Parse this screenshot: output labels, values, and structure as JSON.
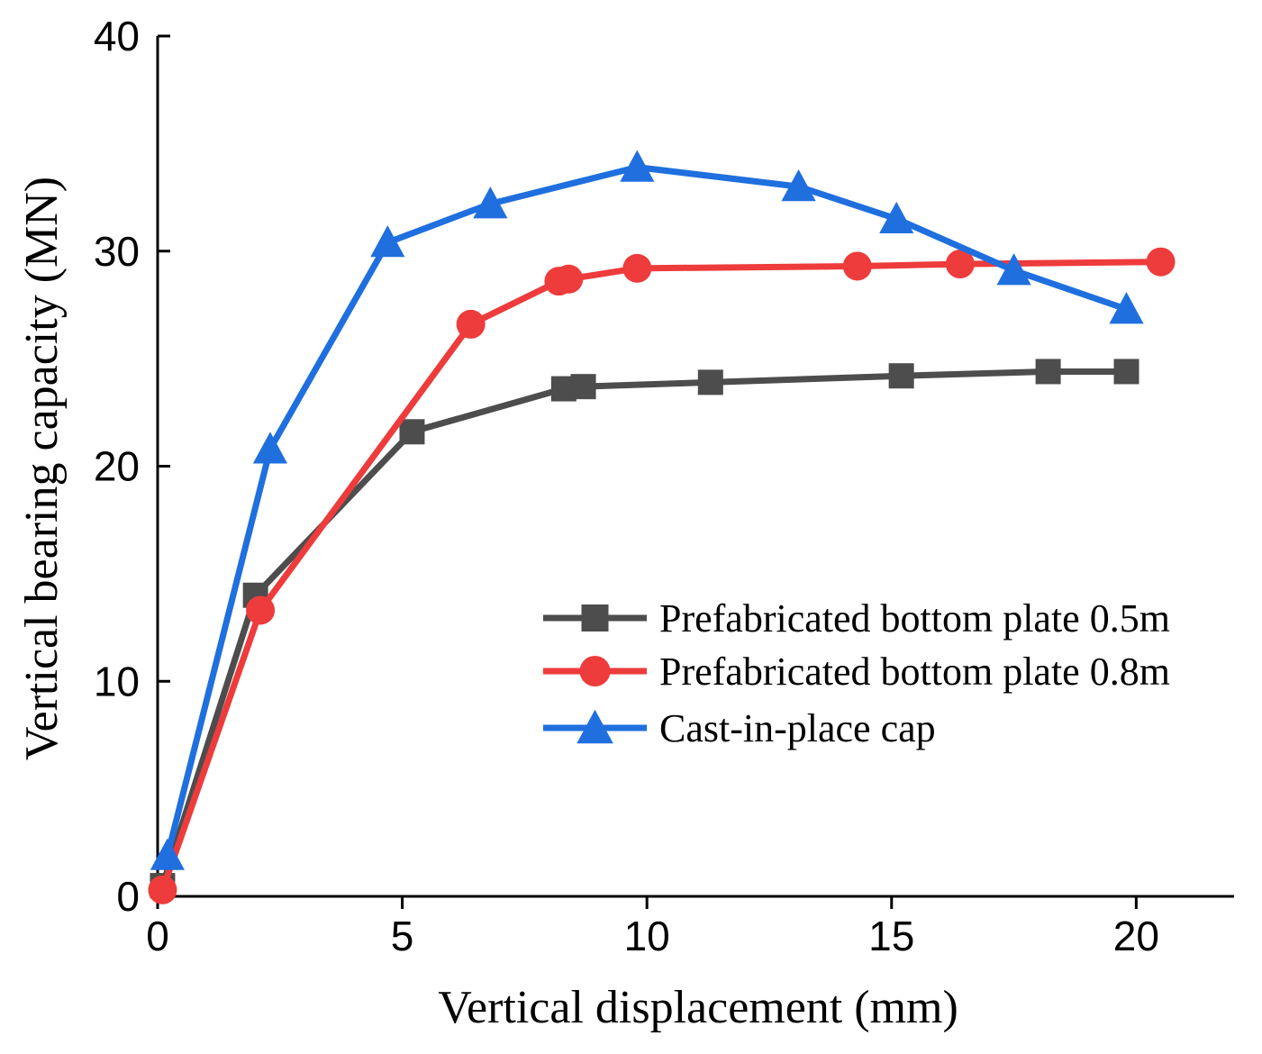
{
  "chart_data": {
    "type": "line",
    "title": "",
    "xlabel": "Vertical displacement (mm)",
    "ylabel": "Vertical bearing capacity (MN)",
    "xlim": [
      0,
      22
    ],
    "ylim": [
      0,
      40
    ],
    "x_ticks": [
      0,
      5,
      10,
      15,
      20
    ],
    "y_ticks": [
      0,
      10,
      20,
      30,
      40
    ],
    "x_tick_labels": [
      "0",
      "5",
      "10",
      "15",
      "20"
    ],
    "y_tick_labels": [
      "0",
      "10",
      "20",
      "30",
      "40"
    ],
    "grid": false,
    "legend_position": "center-right",
    "series": [
      {
        "name": "Prefabricated bottom plate 0.5m",
        "color": "#4d4d4d",
        "marker": "square",
        "x": [
          0.1,
          2.0,
          5.2,
          8.3,
          8.7,
          11.3,
          15.2,
          18.2,
          19.8
        ],
        "y": [
          0.5,
          14.0,
          21.6,
          23.6,
          23.7,
          23.9,
          24.2,
          24.4,
          24.4
        ]
      },
      {
        "name": "Prefabricated bottom plate 0.8m",
        "color": "#ee3b3b",
        "marker": "circle",
        "x": [
          0.1,
          2.1,
          6.4,
          8.2,
          8.4,
          9.8,
          14.3,
          16.4,
          20.5
        ],
        "y": [
          0.3,
          13.3,
          26.6,
          28.6,
          28.7,
          29.2,
          29.3,
          29.4,
          29.5
        ]
      },
      {
        "name": "Cast-in-place cap",
        "color": "#1f6fdf",
        "marker": "triangle",
        "x": [
          0.2,
          2.3,
          4.7,
          6.8,
          9.8,
          13.1,
          15.1,
          17.5,
          19.8
        ],
        "y": [
          1.9,
          20.8,
          30.4,
          32.2,
          33.9,
          33.0,
          31.5,
          29.1,
          27.3
        ]
      }
    ]
  }
}
